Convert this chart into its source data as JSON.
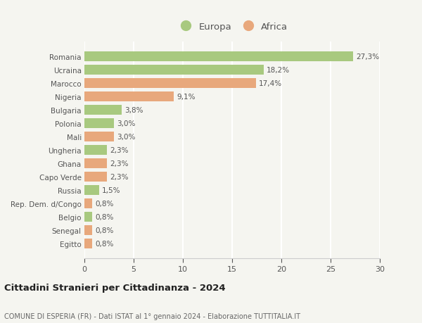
{
  "countries": [
    "Romania",
    "Ucraina",
    "Marocco",
    "Nigeria",
    "Bulgaria",
    "Polonia",
    "Mali",
    "Ungheria",
    "Ghana",
    "Capo Verde",
    "Russia",
    "Rep. Dem. d/Congo",
    "Belgio",
    "Senegal",
    "Egitto"
  ],
  "values": [
    27.3,
    18.2,
    17.4,
    9.1,
    3.8,
    3.0,
    3.0,
    2.3,
    2.3,
    2.3,
    1.5,
    0.8,
    0.8,
    0.8,
    0.8
  ],
  "labels": [
    "27,3%",
    "18,2%",
    "17,4%",
    "9,1%",
    "3,8%",
    "3,0%",
    "3,0%",
    "2,3%",
    "2,3%",
    "2,3%",
    "1,5%",
    "0,8%",
    "0,8%",
    "0,8%",
    "0,8%"
  ],
  "continents": [
    "Europa",
    "Europa",
    "Africa",
    "Africa",
    "Europa",
    "Europa",
    "Africa",
    "Europa",
    "Africa",
    "Africa",
    "Europa",
    "Africa",
    "Europa",
    "Africa",
    "Africa"
  ],
  "color_europa": "#a8c97f",
  "color_africa": "#e8a87c",
  "background_color": "#f5f5f0",
  "grid_color": "#ffffff",
  "title": "Cittadini Stranieri per Cittadinanza - 2024",
  "subtitle": "COMUNE DI ESPERIA (FR) - Dati ISTAT al 1° gennaio 2024 - Elaborazione TUTTITALIA.IT",
  "xlim": [
    0,
    30
  ],
  "xticks": [
    0,
    5,
    10,
    15,
    20,
    25,
    30
  ]
}
